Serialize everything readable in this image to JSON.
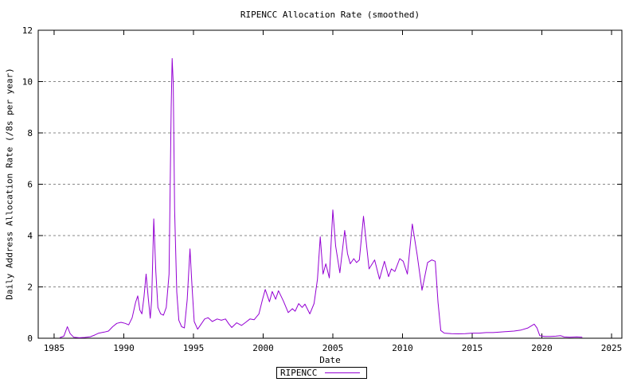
{
  "chart": {
    "title": "RIPENCC Allocation Rate (smoothed)",
    "xlabel": "Date",
    "ylabel": "Daily Address Allocation Rate (/8s per year)",
    "legend": {
      "label": "RIPENCC",
      "position": "below-plot-center"
    },
    "colors": {
      "line": "#9400D3",
      "grid": "#888888",
      "axis": "#000000",
      "text": "#000000",
      "background": "#FFFFFF"
    }
  },
  "chart_data": {
    "type": "line",
    "title": "RIPENCC Allocation Rate (smoothed)",
    "xlabel": "Date",
    "ylabel": "Daily Address Allocation Rate (/8s per year)",
    "xlim": [
      1983.86,
      2025.74
    ],
    "ylim": [
      0,
      12
    ],
    "x_ticks": [
      1985,
      1990,
      1995,
      2000,
      2005,
      2010,
      2015,
      2020,
      2025
    ],
    "y_ticks": [
      0,
      2,
      4,
      6,
      8,
      10,
      12
    ],
    "grid": "horizontal-dashed",
    "legend_position": "bottom-outside",
    "series": [
      {
        "name": "RIPENCC",
        "color": "#9400D3",
        "points": [
          [
            1985.4,
            0.02
          ],
          [
            1985.7,
            0.08
          ],
          [
            1985.95,
            0.45
          ],
          [
            1986.15,
            0.18
          ],
          [
            1986.4,
            0.04
          ],
          [
            1986.8,
            0.02
          ],
          [
            1987.2,
            0.03
          ],
          [
            1987.6,
            0.06
          ],
          [
            1987.9,
            0.12
          ],
          [
            1988.2,
            0.2
          ],
          [
            1988.6,
            0.24
          ],
          [
            1988.9,
            0.28
          ],
          [
            1989.2,
            0.45
          ],
          [
            1989.5,
            0.58
          ],
          [
            1989.8,
            0.62
          ],
          [
            1990.1,
            0.58
          ],
          [
            1990.35,
            0.52
          ],
          [
            1990.6,
            0.8
          ],
          [
            1990.85,
            1.4
          ],
          [
            1991.0,
            1.65
          ],
          [
            1991.15,
            1.1
          ],
          [
            1991.3,
            0.95
          ],
          [
            1991.45,
            1.6
          ],
          [
            1991.6,
            2.5
          ],
          [
            1991.75,
            1.6
          ],
          [
            1991.9,
            0.78
          ],
          [
            1992.0,
            1.5
          ],
          [
            1992.15,
            4.65
          ],
          [
            1992.3,
            2.6
          ],
          [
            1992.45,
            1.2
          ],
          [
            1992.65,
            0.95
          ],
          [
            1992.85,
            0.9
          ],
          [
            1993.05,
            1.2
          ],
          [
            1993.25,
            2.5
          ],
          [
            1993.4,
            9.0
          ],
          [
            1993.47,
            10.9
          ],
          [
            1993.55,
            9.9
          ],
          [
            1993.65,
            5.0
          ],
          [
            1993.8,
            1.8
          ],
          [
            1993.95,
            0.7
          ],
          [
            1994.15,
            0.45
          ],
          [
            1994.35,
            0.4
          ],
          [
            1994.55,
            1.5
          ],
          [
            1994.75,
            3.48
          ],
          [
            1994.9,
            2.0
          ],
          [
            1995.05,
            0.65
          ],
          [
            1995.3,
            0.35
          ],
          [
            1995.55,
            0.55
          ],
          [
            1995.8,
            0.75
          ],
          [
            1996.05,
            0.8
          ],
          [
            1996.35,
            0.65
          ],
          [
            1996.7,
            0.75
          ],
          [
            1997.0,
            0.7
          ],
          [
            1997.3,
            0.75
          ],
          [
            1997.55,
            0.55
          ],
          [
            1997.75,
            0.42
          ],
          [
            1998.1,
            0.6
          ],
          [
            1998.45,
            0.5
          ],
          [
            1998.75,
            0.62
          ],
          [
            1999.05,
            0.75
          ],
          [
            1999.35,
            0.72
          ],
          [
            1999.7,
            0.95
          ],
          [
            1999.95,
            1.5
          ],
          [
            2000.15,
            1.9
          ],
          [
            2000.45,
            1.42
          ],
          [
            2000.65,
            1.82
          ],
          [
            2000.9,
            1.52
          ],
          [
            2001.1,
            1.85
          ],
          [
            2001.45,
            1.45
          ],
          [
            2001.8,
            1.0
          ],
          [
            2002.1,
            1.15
          ],
          [
            2002.3,
            1.05
          ],
          [
            2002.55,
            1.35
          ],
          [
            2002.8,
            1.2
          ],
          [
            2003.0,
            1.33
          ],
          [
            2003.35,
            0.95
          ],
          [
            2003.65,
            1.35
          ],
          [
            2003.9,
            2.3
          ],
          [
            2004.1,
            3.95
          ],
          [
            2004.3,
            2.5
          ],
          [
            2004.5,
            2.9
          ],
          [
            2004.75,
            2.35
          ],
          [
            2005.0,
            5.0
          ],
          [
            2005.2,
            3.6
          ],
          [
            2005.5,
            2.55
          ],
          [
            2005.85,
            4.2
          ],
          [
            2006.05,
            3.3
          ],
          [
            2006.25,
            2.9
          ],
          [
            2006.5,
            3.1
          ],
          [
            2006.7,
            2.95
          ],
          [
            2006.9,
            3.05
          ],
          [
            2007.2,
            4.75
          ],
          [
            2007.6,
            2.7
          ],
          [
            2008.0,
            3.05
          ],
          [
            2008.35,
            2.3
          ],
          [
            2008.7,
            3.0
          ],
          [
            2009.0,
            2.4
          ],
          [
            2009.2,
            2.7
          ],
          [
            2009.45,
            2.6
          ],
          [
            2009.8,
            3.1
          ],
          [
            2010.05,
            3.0
          ],
          [
            2010.35,
            2.5
          ],
          [
            2010.7,
            4.45
          ],
          [
            2011.05,
            3.25
          ],
          [
            2011.4,
            1.87
          ],
          [
            2011.8,
            2.95
          ],
          [
            2012.1,
            3.05
          ],
          [
            2012.35,
            3.0
          ],
          [
            2012.55,
            1.4
          ],
          [
            2012.75,
            0.3
          ],
          [
            2013.0,
            0.2
          ],
          [
            2013.5,
            0.18
          ],
          [
            2014.0,
            0.17
          ],
          [
            2014.5,
            0.18
          ],
          [
            2015.0,
            0.2
          ],
          [
            2015.5,
            0.2
          ],
          [
            2016.0,
            0.22
          ],
          [
            2016.5,
            0.22
          ],
          [
            2017.0,
            0.24
          ],
          [
            2017.5,
            0.26
          ],
          [
            2018.0,
            0.28
          ],
          [
            2018.5,
            0.32
          ],
          [
            2019.0,
            0.4
          ],
          [
            2019.45,
            0.55
          ],
          [
            2019.65,
            0.4
          ],
          [
            2019.85,
            0.1
          ],
          [
            2020.2,
            0.07
          ],
          [
            2020.6,
            0.07
          ],
          [
            2021.0,
            0.08
          ],
          [
            2021.35,
            0.1
          ],
          [
            2021.6,
            0.05
          ],
          [
            2022.0,
            0.04
          ],
          [
            2022.5,
            0.05
          ],
          [
            2022.9,
            0.04
          ]
        ]
      }
    ]
  }
}
